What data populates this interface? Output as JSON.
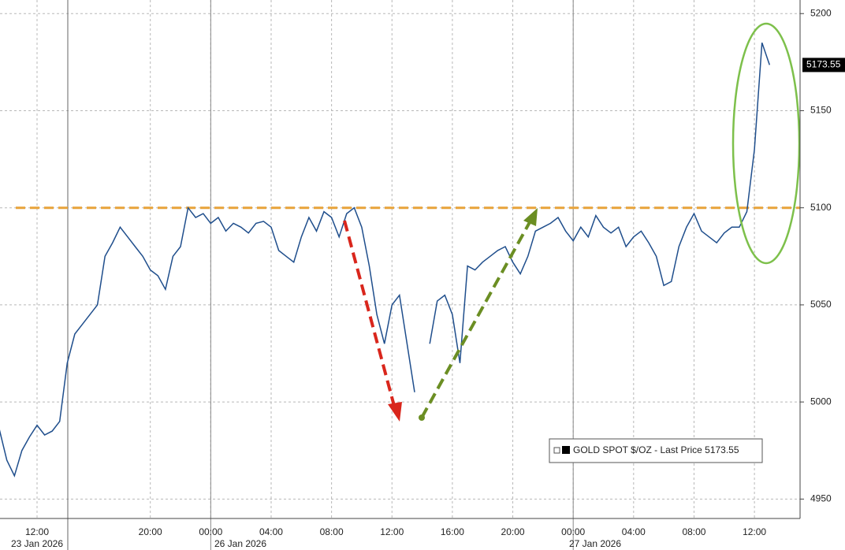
{
  "chart_data": {
    "type": "line",
    "categories": [
      null,
      null,
      null,
      null,
      null,
      "12:00",
      null,
      null,
      null,
      null,
      null,
      null,
      null,
      null,
      null,
      null,
      null,
      null,
      null,
      null,
      "20:00",
      null,
      null,
      null,
      null,
      null,
      null,
      null,
      "00:00",
      null,
      null,
      null,
      null,
      null,
      null,
      null,
      "04:00",
      null,
      null,
      null,
      null,
      null,
      null,
      null,
      "08:00",
      null,
      null,
      null,
      null,
      null,
      null,
      null,
      "12:00",
      null,
      null,
      null,
      null,
      null,
      null,
      null,
      "16:00",
      null,
      null,
      null,
      null,
      null,
      null,
      null,
      "20:00",
      null,
      null,
      null,
      null,
      null,
      null,
      null,
      "00:00",
      null,
      null,
      null,
      null,
      null,
      null,
      null,
      "04:00",
      null,
      null,
      null,
      null,
      null,
      null,
      null,
      "08:00",
      null,
      null,
      null,
      null,
      null,
      null,
      null,
      "12:00",
      null,
      null
    ],
    "date_labels": [
      "23 Jan 2026",
      "26 Jan 2026",
      "27 Jan 2026"
    ],
    "series": [
      {
        "name": "GOLD SPOT $/OZ - Last Price 5173.55",
        "color": "#1f4e8c",
        "values": [
          4986,
          4970,
          4962,
          4975,
          4982,
          4988,
          4983,
          4985,
          4990,
          5020,
          5035,
          5040,
          5045,
          5050,
          5075,
          5082,
          5090,
          5085,
          5080,
          5075,
          5068,
          5065,
          5058,
          5075,
          5080,
          5100,
          5095,
          5097,
          5092,
          5095,
          5088,
          5092,
          5090,
          5087,
          5092,
          5093,
          5090,
          5078,
          5075,
          5072,
          5085,
          5095,
          5088,
          5098,
          5095,
          5085,
          5097,
          5100,
          5090,
          5070,
          5045,
          5030,
          5050,
          5055,
          5030,
          5005,
          null,
          5030,
          5052,
          5055,
          5045,
          5020,
          5070,
          5068,
          5072,
          5075,
          5078,
          5080,
          5072,
          5066,
          5075,
          5088,
          5090,
          5092,
          5095,
          5088,
          5083,
          5090,
          5085,
          5096,
          5090,
          5087,
          5090,
          5080,
          5085,
          5088,
          5082,
          5075,
          5060,
          5062,
          5080,
          5090,
          5097,
          5088,
          5085,
          5082,
          5087,
          5090,
          5090,
          5098,
          5130,
          5185,
          5173.55
        ]
      }
    ],
    "last_price": 5173.55,
    "reference_line": {
      "value": 5100,
      "color": "#e8a33a"
    },
    "ylim": [
      4940,
      5207
    ],
    "yticks": [
      4950,
      5000,
      5050,
      5100,
      5150,
      5200
    ],
    "grid": true
  }
}
